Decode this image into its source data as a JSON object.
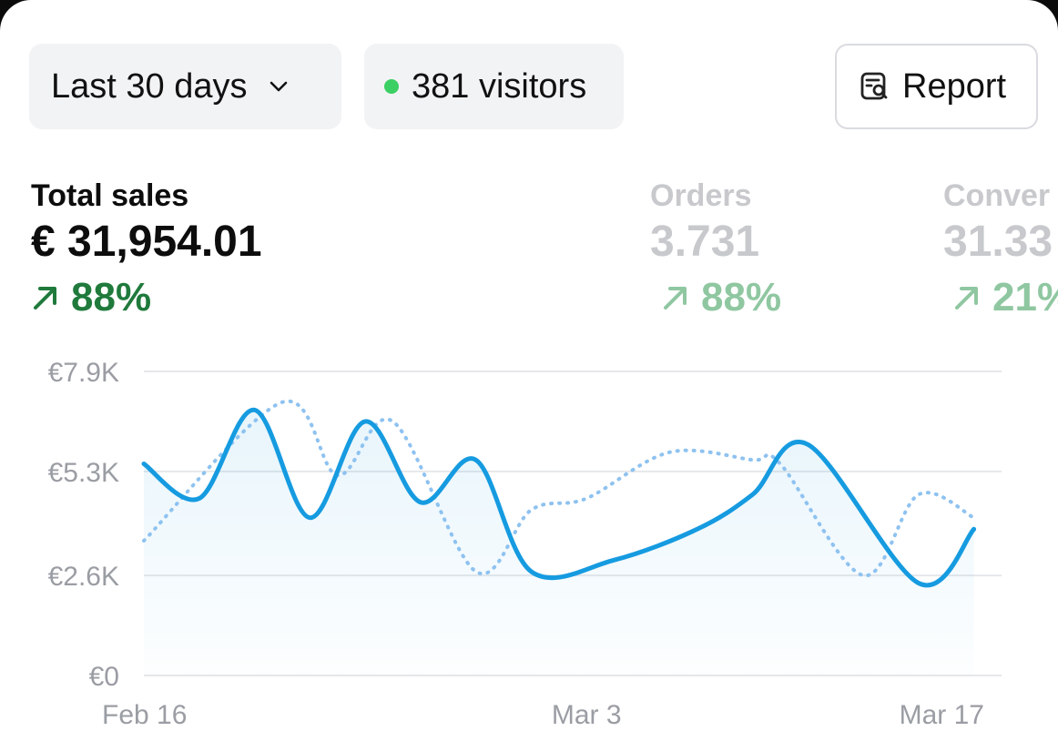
{
  "filters": {
    "range_label": "Last 30 days",
    "visitors_label": "381 visitors",
    "report_label": "Report"
  },
  "metrics": [
    {
      "label": "Total sales",
      "value": "€ 31,954.01",
      "change": "88%"
    },
    {
      "label": "Orders",
      "value": "3.731",
      "change": "88%"
    },
    {
      "label": "Conver",
      "value": "31.33",
      "change": "21%"
    }
  ],
  "icons": {
    "range": "chevron-down-icon",
    "visitors": "status-dot-icon",
    "report": "report-search-icon",
    "trend": "arrow-up-right-icon"
  },
  "colors": {
    "positive": "#1f7a3c",
    "positive_muted": "#8fc7a1",
    "series_current": "#169be0",
    "series_previous": "#8ec2f0",
    "live_dot": "#3ccf63"
  },
  "chart_data": {
    "type": "line",
    "ylim": [
      0,
      7900
    ],
    "yticks": [
      {
        "value": 0,
        "label": "€0"
      },
      {
        "value": 2600,
        "label": "€2.6K"
      },
      {
        "value": 5300,
        "label": "€5.3K"
      },
      {
        "value": 7900,
        "label": "€7.9K"
      }
    ],
    "xlim": [
      "Feb 16",
      "Mar 18"
    ],
    "xticks": [
      {
        "date": "Feb 16",
        "label": "Feb 16"
      },
      {
        "date": "Mar 3",
        "label": "Mar 3"
      },
      {
        "date": "Mar 17",
        "label": "Mar 17"
      }
    ],
    "grid": true,
    "series": [
      {
        "style": "solid",
        "points": [
          {
            "x": "Feb 16",
            "y": 5500
          },
          {
            "x": "Feb 18",
            "y": 4600
          },
          {
            "x": "Feb 20",
            "y": 6900
          },
          {
            "x": "Feb 22",
            "y": 4100
          },
          {
            "x": "Feb 24",
            "y": 6600
          },
          {
            "x": "Feb 26",
            "y": 4500
          },
          {
            "x": "Feb 28",
            "y": 5600
          },
          {
            "x": "Mar 1",
            "y": 2700
          },
          {
            "x": "Mar 4",
            "y": 3000
          },
          {
            "x": "Mar 7",
            "y": 3800
          },
          {
            "x": "Mar 9",
            "y": 4700
          },
          {
            "x": "Mar 11",
            "y": 6000
          },
          {
            "x": "Mar 15",
            "y": 2400
          },
          {
            "x": "Mar 17",
            "y": 3800
          }
        ]
      },
      {
        "style": "dotted",
        "points": [
          {
            "x": "Feb 16",
            "y": 3500
          },
          {
            "x": "Feb 21",
            "y": 7100
          },
          {
            "x": "Feb 23",
            "y": 5200
          },
          {
            "x": "Feb 25",
            "y": 6600
          },
          {
            "x": "Feb 28",
            "y": 2700
          },
          {
            "x": "Mar 1",
            "y": 4300
          },
          {
            "x": "Mar 3",
            "y": 4600
          },
          {
            "x": "Mar 6",
            "y": 5800
          },
          {
            "x": "Mar 9",
            "y": 5600
          },
          {
            "x": "Mar 10",
            "y": 5500
          },
          {
            "x": "Mar 13",
            "y": 2600
          },
          {
            "x": "Mar 15",
            "y": 4700
          },
          {
            "x": "Mar 17",
            "y": 4100
          }
        ]
      }
    ]
  }
}
